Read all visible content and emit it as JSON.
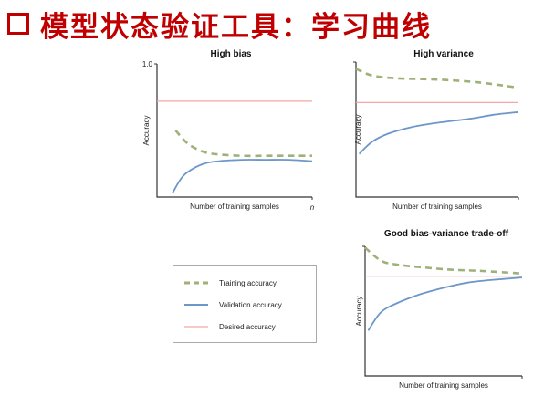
{
  "slide": {
    "title": "模型状态验证工具：学习曲线"
  },
  "colors": {
    "title": "#c00000",
    "training": "#9fb179",
    "validation": "#6d96c9",
    "desired": "#f4a6a6"
  },
  "legend": {
    "training": "Training accuracy",
    "validation": "Validation accuracy",
    "desired": "Desired accuracy"
  },
  "chart_data": [
    {
      "type": "line",
      "title": "High bias",
      "xlabel": "Number of training samples",
      "ylabel": "Accuracy",
      "ytick_top": "1.0",
      "xtick_end": "n",
      "xlim": [
        0,
        1
      ],
      "ylim": [
        0,
        1
      ],
      "desired": 0.72,
      "series": [
        {
          "name": "Training accuracy",
          "x": [
            0.12,
            0.2,
            0.3,
            0.4,
            0.55,
            0.7,
            0.85,
            1.0
          ],
          "y": [
            0.5,
            0.4,
            0.34,
            0.32,
            0.31,
            0.31,
            0.31,
            0.31
          ]
        },
        {
          "name": "Validation accuracy",
          "x": [
            0.1,
            0.15,
            0.2,
            0.3,
            0.4,
            0.55,
            0.7,
            0.85,
            1.0
          ],
          "y": [
            0.03,
            0.13,
            0.19,
            0.25,
            0.27,
            0.28,
            0.28,
            0.28,
            0.27
          ]
        }
      ]
    },
    {
      "type": "line",
      "title": "High variance",
      "xlabel": "Number of training samples",
      "ylabel": "Accuracy",
      "xlim": [
        0,
        1
      ],
      "ylim": [
        0,
        1
      ],
      "desired": 0.7,
      "series": [
        {
          "name": "Training accuracy",
          "x": [
            0.0,
            0.1,
            0.25,
            0.5,
            0.75,
            1.0
          ],
          "y": [
            0.95,
            0.9,
            0.88,
            0.87,
            0.85,
            0.81
          ]
        },
        {
          "name": "Validation accuracy",
          "x": [
            0.02,
            0.1,
            0.2,
            0.35,
            0.5,
            0.7,
            0.85,
            1.0
          ],
          "y": [
            0.32,
            0.41,
            0.47,
            0.52,
            0.55,
            0.58,
            0.61,
            0.63
          ]
        }
      ]
    },
    {
      "type": "line",
      "title": "Good bias-variance trade-off",
      "xlabel": "Number of training samples",
      "ylabel": "Accuracy",
      "xlim": [
        0,
        1
      ],
      "ylim": [
        0,
        1
      ],
      "desired": 0.77,
      "series": [
        {
          "name": "Training accuracy",
          "x": [
            0.0,
            0.1,
            0.2,
            0.35,
            0.55,
            0.75,
            1.0
          ],
          "y": [
            0.99,
            0.89,
            0.86,
            0.84,
            0.82,
            0.81,
            0.79
          ]
        },
        {
          "name": "Validation accuracy",
          "x": [
            0.02,
            0.1,
            0.2,
            0.35,
            0.5,
            0.65,
            0.8,
            1.0
          ],
          "y": [
            0.35,
            0.49,
            0.56,
            0.63,
            0.68,
            0.72,
            0.74,
            0.76
          ]
        }
      ]
    }
  ]
}
